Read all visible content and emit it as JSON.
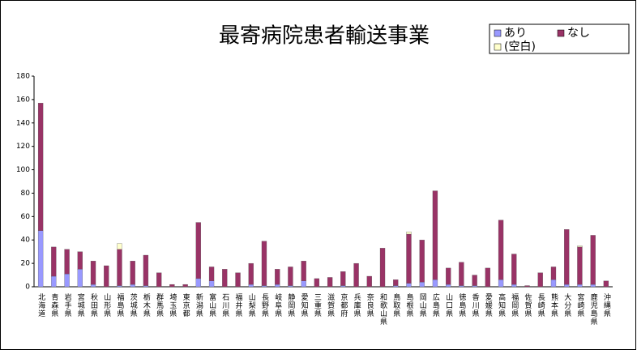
{
  "chart_data": {
    "type": "bar",
    "stacked": true,
    "title": "最寄病院患者輸送事業",
    "categories": [
      "北海道",
      "青森県",
      "岩手県",
      "宮城県",
      "秋田県",
      "山形県",
      "福島県",
      "茨城県",
      "栃木県",
      "群馬県",
      "埼玉県",
      "東京都",
      "新潟県",
      "富山県",
      "石川県",
      "福井県",
      "山梨県",
      "長野県",
      "岐阜県",
      "静岡県",
      "愛知県",
      "三重県",
      "滋賀県",
      "京都府",
      "兵庫県",
      "奈良県",
      "和歌山県",
      "鳥取県",
      "島根県",
      "岡山県",
      "広島県",
      "山口県",
      "徳島県",
      "香川県",
      "愛媛県",
      "高知県",
      "福岡県",
      "佐賀県",
      "長崎県",
      "熊本県",
      "大分県",
      "宮崎県",
      "鹿児島県",
      "沖縄県"
    ],
    "series": [
      {
        "name": "あり",
        "color": "#9999ff",
        "values": [
          48,
          9,
          11,
          15,
          2,
          0,
          1,
          2,
          1,
          0,
          0,
          0,
          7,
          5,
          0,
          0,
          2,
          1,
          2,
          1,
          5,
          0,
          0,
          1,
          0,
          0,
          0,
          1,
          3,
          4,
          6,
          2,
          1,
          1,
          0,
          6,
          2,
          0,
          0,
          6,
          2,
          2,
          2,
          0
        ]
      },
      {
        "name": "なし",
        "color": "#993366",
        "values": [
          109,
          25,
          21,
          15,
          20,
          18,
          31,
          20,
          26,
          12,
          2,
          2,
          48,
          12,
          15,
          12,
          18,
          38,
          13,
          16,
          17,
          7,
          8,
          12,
          20,
          9,
          33,
          5,
          42,
          36,
          76,
          14,
          20,
          9,
          16,
          51,
          26,
          1,
          12,
          11,
          47,
          32,
          42,
          5
        ]
      },
      {
        "name": "(空白)",
        "color": "#ffffcc",
        "values": [
          0,
          0,
          0,
          0,
          0,
          0,
          5,
          0,
          0,
          0,
          0,
          0,
          0,
          0,
          0,
          0,
          0,
          0,
          0,
          0,
          0,
          0,
          0,
          0,
          0,
          0,
          0,
          0,
          2,
          0,
          0,
          0,
          0,
          0,
          0,
          0,
          0,
          0,
          0,
          0,
          0,
          1,
          0,
          0
        ]
      }
    ],
    "ylim": [
      0,
      180
    ],
    "yticks": [
      0,
      20,
      40,
      60,
      80,
      100,
      120,
      140,
      160,
      180
    ],
    "grid": false,
    "legend": "top-right"
  }
}
